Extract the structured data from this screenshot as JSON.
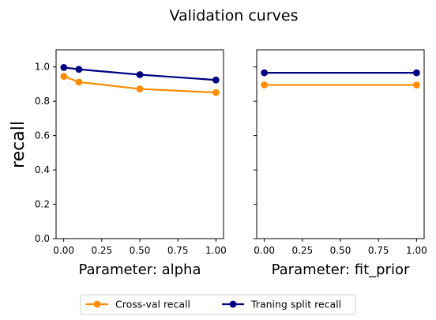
{
  "title": "Validation curves",
  "shared_ylabel": "recall",
  "colors": {
    "cv": "#ff8c00",
    "train": "#000080"
  },
  "legend": {
    "placement": "bottom-center",
    "entries": [
      "Cross-val recall",
      "Traning split recall"
    ]
  },
  "chart_data": [
    {
      "type": "line",
      "xlabel": "Parameter: alpha",
      "ylabel": "recall",
      "xlim": [
        -0.05,
        1.05
      ],
      "ylim": [
        0.0,
        1.1
      ],
      "x_ticks": [
        0.0,
        0.25,
        0.5,
        0.75,
        1.0
      ],
      "x_tick_labels": [
        "0.00",
        "0.25",
        "0.50",
        "0.75",
        "1.00"
      ],
      "y_ticks": [
        0.0,
        0.2,
        0.4,
        0.6,
        0.8,
        1.0
      ],
      "y_tick_labels": [
        "0.0",
        "0.2",
        "0.4",
        "0.6",
        "0.8",
        "1.0"
      ],
      "show_y_tick_labels": true,
      "grid": false,
      "x": [
        0.001,
        0.1,
        0.5,
        1.0
      ],
      "series": [
        {
          "name": "Cross-val recall",
          "values": [
            0.945,
            0.912,
            0.872,
            0.851
          ]
        },
        {
          "name": "Traning split recall",
          "values": [
            0.997,
            0.986,
            0.955,
            0.924
          ]
        }
      ]
    },
    {
      "type": "line",
      "xlabel": "Parameter: fit_prior",
      "ylabel": "",
      "xlim": [
        -0.05,
        1.05
      ],
      "ylim": [
        0.0,
        1.1
      ],
      "x_ticks": [
        0.0,
        0.25,
        0.5,
        0.75,
        1.0
      ],
      "x_tick_labels": [
        "0.00",
        "0.25",
        "0.50",
        "0.75",
        "1.00"
      ],
      "y_ticks": [
        0.0,
        0.2,
        0.4,
        0.6,
        0.8,
        1.0
      ],
      "y_tick_labels": [
        "0.0",
        "0.2",
        "0.4",
        "0.6",
        "0.8",
        "1.0"
      ],
      "show_y_tick_labels": false,
      "grid": false,
      "x": [
        0.0,
        1.0
      ],
      "series": [
        {
          "name": "Cross-val recall",
          "values": [
            0.895,
            0.895
          ]
        },
        {
          "name": "Traning split recall",
          "values": [
            0.966,
            0.966
          ]
        }
      ]
    }
  ]
}
